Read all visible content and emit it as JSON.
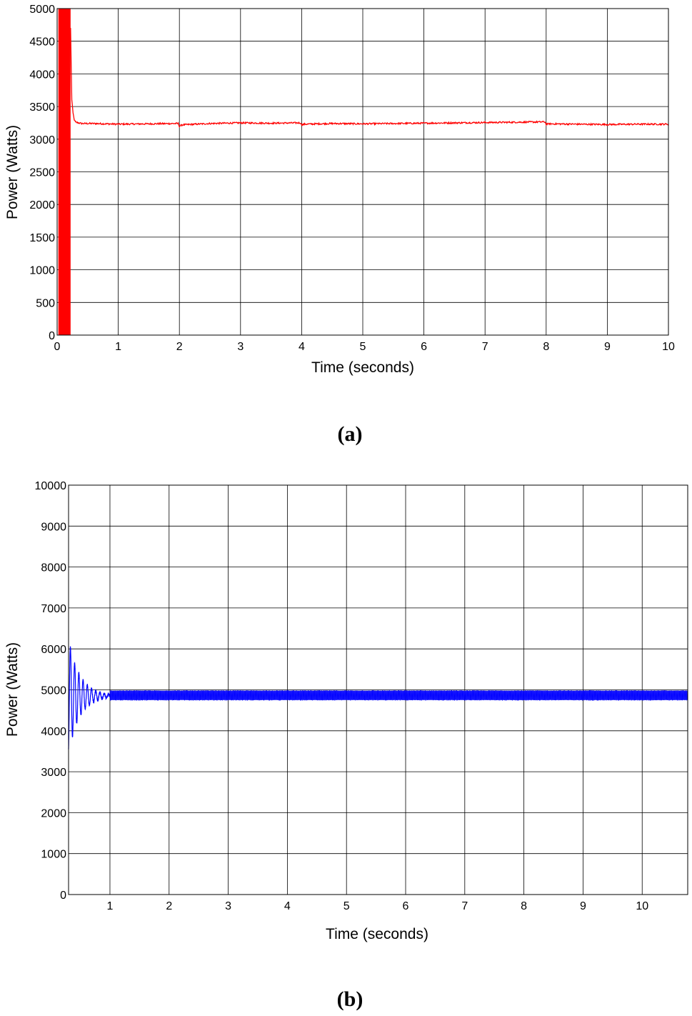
{
  "chart_data": [
    {
      "type": "line",
      "caption": "(a)",
      "xlabel": "Time (seconds)",
      "ylabel": "Power (Watts)",
      "xlim": [
        0,
        10
      ],
      "ylim": [
        0,
        5000
      ],
      "xticks": [
        0,
        1,
        2,
        3,
        4,
        5,
        6,
        7,
        8,
        9,
        10
      ],
      "yticks": [
        0,
        500,
        1000,
        1500,
        2000,
        2500,
        3000,
        3500,
        4000,
        4500,
        5000
      ],
      "grid": true,
      "color": "#ff0000",
      "series": [
        {
          "transient": {
            "from": 0.02,
            "to": 0.22,
            "min": 0,
            "max": 5000
          },
          "points": [
            [
              0.22,
              4700
            ],
            [
              0.24,
              3600
            ],
            [
              0.26,
              3400
            ],
            [
              0.28,
              3300
            ],
            [
              0.3,
              3260
            ],
            [
              0.4,
              3240
            ],
            [
              0.6,
              3240
            ],
            [
              0.8,
              3235
            ],
            [
              1.0,
              3230
            ],
            [
              1.5,
              3235
            ],
            [
              1.98,
              3240
            ],
            [
              2.0,
              3200
            ],
            [
              2.05,
              3220
            ],
            [
              2.5,
              3240
            ],
            [
              3.0,
              3250
            ],
            [
              3.5,
              3245
            ],
            [
              3.98,
              3250
            ],
            [
              4.0,
              3220
            ],
            [
              4.05,
              3230
            ],
            [
              4.5,
              3240
            ],
            [
              5.0,
              3235
            ],
            [
              5.5,
              3240
            ],
            [
              6.0,
              3245
            ],
            [
              6.5,
              3250
            ],
            [
              7.0,
              3255
            ],
            [
              7.5,
              3260
            ],
            [
              7.98,
              3265
            ],
            [
              8.0,
              3230
            ],
            [
              8.05,
              3235
            ],
            [
              8.5,
              3230
            ],
            [
              9.0,
              3225
            ],
            [
              9.5,
              3230
            ],
            [
              10.0,
              3230
            ]
          ],
          "noise": 12
        }
      ]
    },
    {
      "type": "line",
      "caption": "(b)",
      "xlabel": "Time (seconds)",
      "ylabel": "Power (Watts)",
      "xlim": [
        0.3,
        10.77
      ],
      "ylim": [
        0,
        10000
      ],
      "xticks": [
        1,
        2,
        3,
        4,
        5,
        6,
        7,
        8,
        9,
        10
      ],
      "yticks": [
        0,
        1000,
        2000,
        3000,
        4000,
        5000,
        6000,
        7000,
        8000,
        9000,
        10000
      ],
      "grid": true,
      "color": "#0000ff",
      "series": [
        {
          "oscillation": {
            "start": 0.3,
            "center": 4850,
            "amplitude": 1400,
            "decay_until": 1.0
          },
          "steady_band": {
            "from": 1.0,
            "to": 10.77,
            "low": 4750,
            "high": 4980
          }
        }
      ]
    }
  ]
}
